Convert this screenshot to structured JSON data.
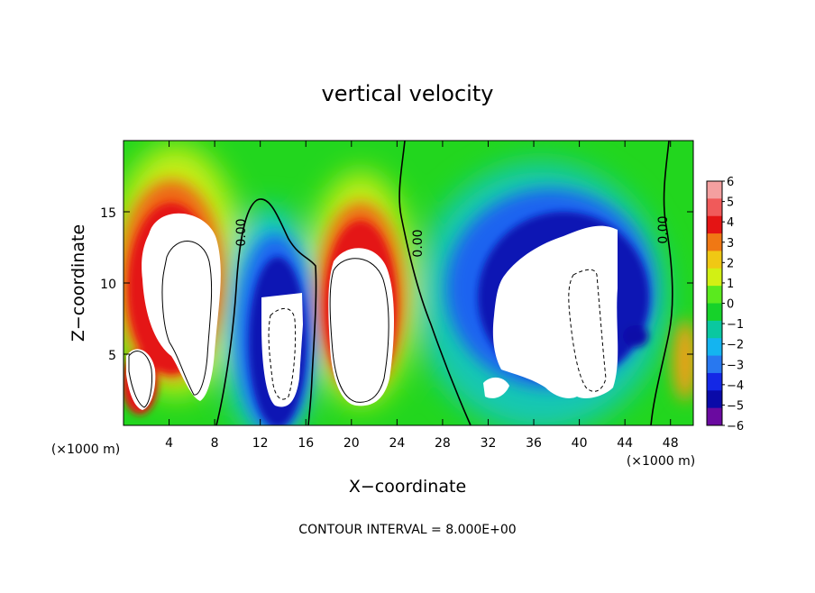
{
  "chart_data": {
    "type": "heatmap",
    "title": "vertical velocity",
    "xlabel": "X−coordinate",
    "ylabel": "Z−coordinate",
    "x_unit_left": "(×1000 m)",
    "x_unit_right": "(×1000 m)",
    "xlim": [
      0,
      50
    ],
    "ylim": [
      0,
      20
    ],
    "x_ticks": [
      "4",
      "8",
      "12",
      "16",
      "20",
      "24",
      "28",
      "32",
      "36",
      "40",
      "44",
      "48"
    ],
    "y_ticks": [
      "5",
      "10",
      "15"
    ],
    "colorbar_labels": [
      "6",
      "5",
      "4",
      "3",
      "2",
      "1",
      "0",
      "−1",
      "−2",
      "−3",
      "−4",
      "−5",
      "−6"
    ],
    "contour_label": "0.00",
    "contour_interval_text": "CONTOUR INTERVAL = 8.000E+00",
    "background_color": "#22d61e",
    "colorbar_colors": [
      "#f4a0a0",
      "#f05a5a",
      "#e41414",
      "#f07814",
      "#f0c814",
      "#d2f014",
      "#5aea1e",
      "#16d22a",
      "#0ac8a0",
      "#14b4f0",
      "#2878f0",
      "#1428e6",
      "#0a0aa8",
      "#6a0aa0"
    ],
    "features": [
      {
        "name": "updraft",
        "x": 3.8,
        "z": 9.5
      },
      {
        "name": "downdraft",
        "x": 13.5,
        "z": 6.5
      },
      {
        "name": "updraft",
        "x": 20.5,
        "z": 7.5
      },
      {
        "name": "downdraft",
        "x": 38.5,
        "z": 8.0
      }
    ]
  }
}
